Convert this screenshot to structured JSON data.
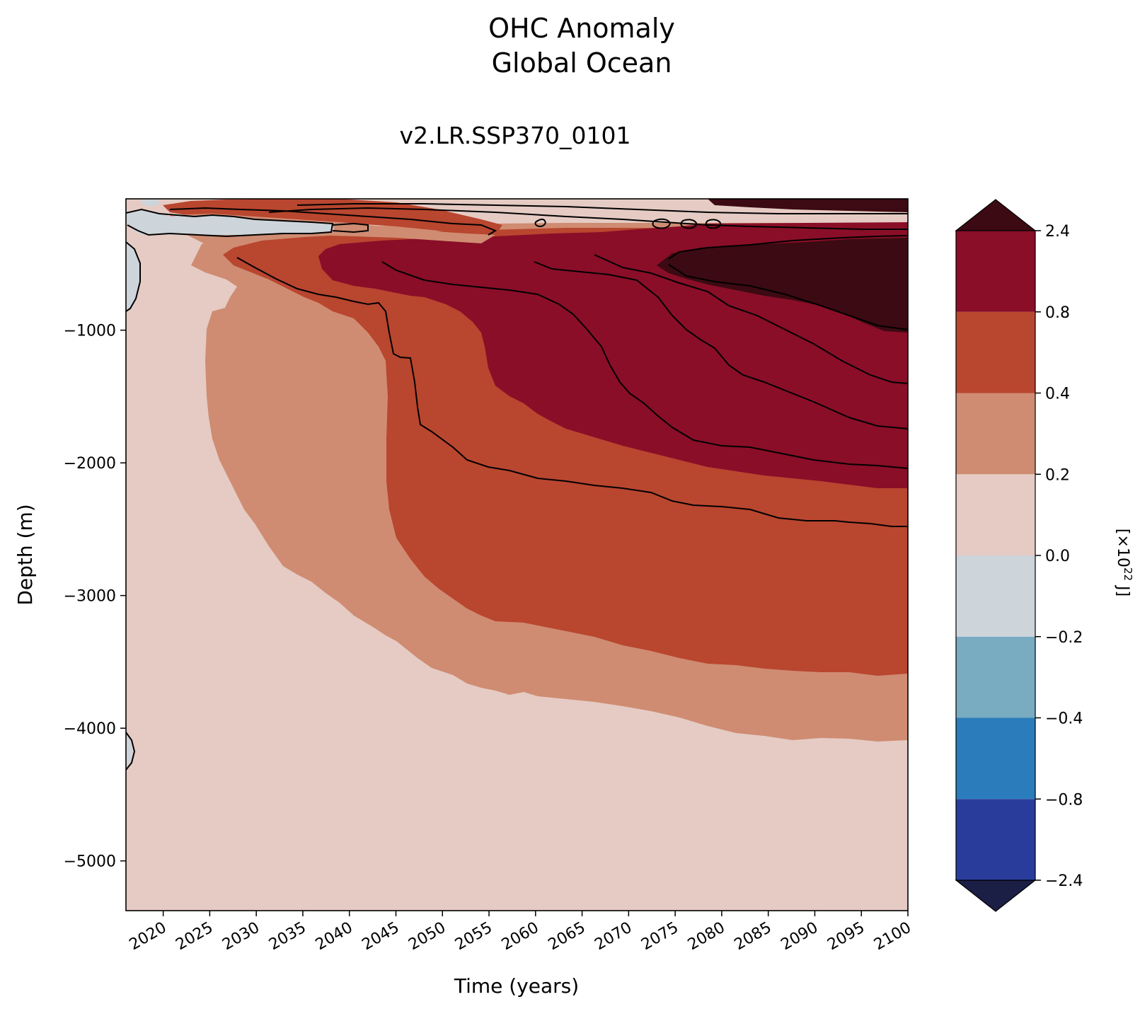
{
  "chart_data": {
    "type": "contourf",
    "title": "OHC Anomaly",
    "subtitle": "Global Ocean",
    "run_label": "v2.LR.SSP370_0101",
    "xlabel": "Time (years)",
    "ylabel": "Depth (m)",
    "xlim": [
      2016,
      2100
    ],
    "ylim": [
      -5375,
      -10
    ],
    "x_ticks": [
      "2020",
      "2025",
      "2030",
      "2035",
      "2040",
      "2045",
      "2050",
      "2055",
      "2060",
      "2065",
      "2070",
      "2075",
      "2080",
      "2085",
      "2090",
      "2095",
      "2100"
    ],
    "y_ticks": [
      "−1000",
      "−2000",
      "−3000",
      "−4000",
      "−5000"
    ],
    "colorbar": {
      "label": "[×10²² J]",
      "levels": [
        "−2.4",
        "−0.8",
        "−0.4",
        "−0.2",
        "0.0",
        "0.2",
        "0.4",
        "0.8",
        "2.4"
      ],
      "extend": "both",
      "colors": [
        "#1b1e45",
        "#293c9c",
        "#2a7cba",
        "#79abc1",
        "#cdd4da",
        "#e5cbc4",
        "#cf8c72",
        "#b9462f",
        "#8a0e28",
        "#3c0a12"
      ]
    },
    "contour_bands": [
      {
        "name": "band-0-0.2",
        "range": [
          0.0,
          0.2
        ],
        "color": "#e5cbc4"
      },
      {
        "name": "band-0.2-0.4",
        "range": [
          0.2,
          0.4
        ],
        "color": "#cf8c72"
      },
      {
        "name": "band-0.4-0.8",
        "range": [
          0.4,
          0.8
        ],
        "color": "#b9462f"
      },
      {
        "name": "band-0.8-2.4",
        "range": [
          0.8,
          2.4
        ],
        "color": "#8a0e28"
      },
      {
        "name": "band-above-2.4",
        "range": [
          2.4,
          null
        ],
        "color": "#3c0a12"
      },
      {
        "name": "band-neg-0.2-0",
        "range": [
          -0.2,
          0.0
        ],
        "color": "#cdd4da"
      }
    ]
  }
}
